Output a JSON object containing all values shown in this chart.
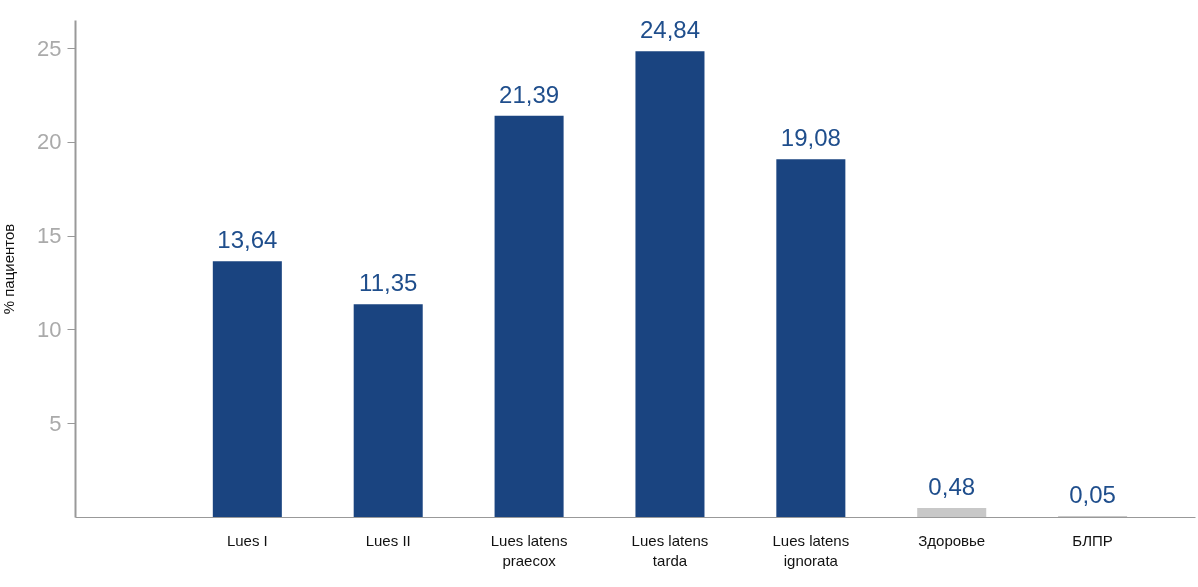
{
  "chart_data": {
    "type": "bar",
    "ylabel": "% пациентов",
    "categories": [
      "Lues I",
      "Lues II",
      "Lues latens praecox",
      "Lues latens tarda",
      "Lues latens ignorata",
      "Здоровье",
      "БЛПР"
    ],
    "values": [
      13.64,
      11.35,
      21.39,
      24.84,
      19.08,
      0.48,
      0.05
    ],
    "value_labels": [
      "13,64",
      "11,35",
      "21,39",
      "24,84",
      "19,08",
      "0,48",
      "0,05"
    ],
    "colors": [
      "#1a4480",
      "#1a4480",
      "#1a4480",
      "#1a4480",
      "#1a4480",
      "#c8c8c8",
      "#c8c8c8"
    ],
    "ylim": [
      0,
      26.5
    ],
    "yticks": [
      5,
      10,
      15,
      20,
      25
    ],
    "grid": false
  }
}
